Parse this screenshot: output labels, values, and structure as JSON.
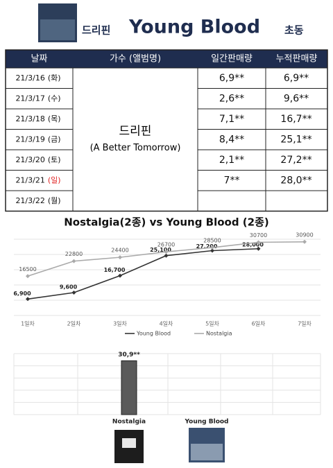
{
  "header": {
    "artist": "드리핀",
    "title": "Young Blood",
    "suffix": "초동"
  },
  "table": {
    "columns": [
      "날짜",
      "가수 (앨범명)",
      "일간판매량",
      "누적판매량"
    ],
    "singer": "드리핀",
    "album": "(A Better Tomorrow)",
    "rows": [
      {
        "date": "21/3/16",
        "day": "(화)",
        "daily": "6,9**",
        "total": "6,9**"
      },
      {
        "date": "21/3/17",
        "day": "(수)",
        "daily": "2,6**",
        "total": "9,6**"
      },
      {
        "date": "21/3/18",
        "day": "(목)",
        "daily": "7,1**",
        "total": "16,7**"
      },
      {
        "date": "21/3/19",
        "day": "(금)",
        "daily": "8,4**",
        "total": "25,1**"
      },
      {
        "date": "21/3/20",
        "day": "(토)",
        "daily": "2,1**",
        "total": "27,2**"
      },
      {
        "date": "21/3/21",
        "day": "(일)",
        "daily": "7**",
        "total": "28,0**"
      },
      {
        "date": "21/3/22",
        "day": "(월)"
      }
    ]
  },
  "chart_data": [
    {
      "type": "line",
      "title": "Nostalgia(2종) vs Young Blood (2종)",
      "categories": [
        "1일차",
        "2일차",
        "3일차",
        "4일차",
        "5일차",
        "6일차",
        "7일차"
      ],
      "series": [
        {
          "name": "Young Blood",
          "color": "#333333",
          "values": [
            6900,
            9600,
            16700,
            25100,
            27200,
            28000,
            null
          ],
          "value_labels": [
            "6,900",
            "9,600",
            "16,700",
            "25,100",
            "27,200",
            "28,000",
            null
          ]
        },
        {
          "name": "Nostalgia",
          "color": "#aaaaaa",
          "values": [
            16500,
            22800,
            24400,
            26700,
            28500,
            30700,
            30900
          ]
        }
      ],
      "ylim": [
        0,
        32000
      ],
      "grid": true
    },
    {
      "type": "bar",
      "categories": [
        "Nostalgia",
        "Young Blood"
      ],
      "values": [
        30900,
        null
      ],
      "value_labels": [
        "30,9**",
        null
      ],
      "color": "#5a5a5a",
      "ylim": [
        0,
        35000
      ],
      "grid": true
    }
  ]
}
